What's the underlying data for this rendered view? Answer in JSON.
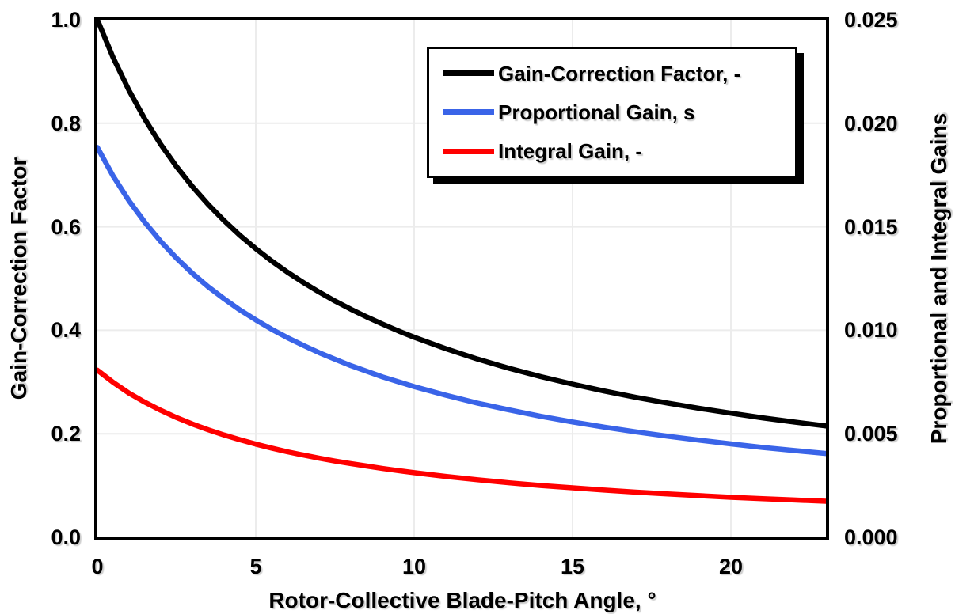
{
  "chart_data": {
    "type": "line",
    "title": "",
    "x_axis": {
      "title": "Rotor-Collective Blade-Pitch Angle, °",
      "xlim": [
        0,
        23
      ],
      "ticks": [
        {
          "v": 0,
          "label": "0"
        },
        {
          "v": 5,
          "label": "5"
        },
        {
          "v": 10,
          "label": "10"
        },
        {
          "v": 15,
          "label": "15"
        },
        {
          "v": 20,
          "label": "20"
        }
      ],
      "gridlines": [
        5,
        10,
        15,
        20
      ]
    },
    "left_axis": {
      "title": "Gain-Correction Factor",
      "ylim": [
        0,
        1.0
      ],
      "ticks": [
        {
          "v": 1.0,
          "label": "1.0"
        },
        {
          "v": 0.8,
          "label": "0.8"
        },
        {
          "v": 0.6,
          "label": "0.6"
        },
        {
          "v": 0.4,
          "label": "0.4"
        },
        {
          "v": 0.2,
          "label": "0.2"
        },
        {
          "v": 0.0,
          "label": "0.0"
        }
      ],
      "gridlines": [
        0.2,
        0.4,
        0.6,
        0.8
      ]
    },
    "right_axis": {
      "title": "Proportional and Integral Gains",
      "ylim": [
        0,
        0.025
      ],
      "ticks": [
        {
          "v": 0.025,
          "label": "0.025"
        },
        {
          "v": 0.02,
          "label": "0.020"
        },
        {
          "v": 0.015,
          "label": "0.015"
        },
        {
          "v": 0.01,
          "label": "0.010"
        },
        {
          "v": 0.005,
          "label": "0.005"
        },
        {
          "v": 0.0,
          "label": "0.000"
        }
      ]
    },
    "grid": true,
    "grid_color": "#ececec",
    "legend_position": "top-right-inside",
    "x": [
      0,
      0.5,
      1,
      1.5,
      2,
      2.5,
      3,
      3.5,
      4,
      4.5,
      5,
      5.5,
      6,
      6.5,
      7,
      7.5,
      8,
      8.5,
      9,
      9.5,
      10,
      11,
      12,
      13,
      14,
      15,
      16,
      17,
      18,
      19,
      20,
      21,
      22,
      23
    ],
    "series": [
      {
        "name": "Gain-Correction Factor, -",
        "axis": "left",
        "color": "#000000",
        "values": [
          1.0,
          0.9265,
          0.8631,
          0.8078,
          0.7591,
          0.716,
          0.6775,
          0.6429,
          0.6117,
          0.5834,
          0.5576,
          0.534,
          0.5123,
          0.4923,
          0.4738,
          0.4566,
          0.4406,
          0.4258,
          0.4119,
          0.3988,
          0.3866,
          0.3643,
          0.3443,
          0.3265,
          0.3104,
          0.2959,
          0.2826,
          0.2704,
          0.2593,
          0.2491,
          0.2397,
          0.2308,
          0.2227,
          0.2151
        ]
      },
      {
        "name": "Proportional Gain, s",
        "axis": "right",
        "color": "#3A64E8",
        "values": [
          0.01883,
          0.01744,
          0.01625,
          0.01521,
          0.01429,
          0.01348,
          0.01275,
          0.0121,
          0.01152,
          0.01098,
          0.0105,
          0.01005,
          0.00964,
          0.00927,
          0.00892,
          0.0086,
          0.00829,
          0.00802,
          0.00775,
          0.00751,
          0.00728,
          0.00686,
          0.00648,
          0.00615,
          0.00584,
          0.00557,
          0.00532,
          0.00509,
          0.00488,
          0.00469,
          0.00451,
          0.00434,
          0.00419,
          0.00405
        ]
      },
      {
        "name": "Integral Gain, -",
        "axis": "right",
        "color": "#FF0000",
        "values": [
          0.00807,
          0.00748,
          0.00696,
          0.00652,
          0.00613,
          0.00578,
          0.00547,
          0.00519,
          0.00494,
          0.00471,
          0.0045,
          0.00431,
          0.00413,
          0.00397,
          0.00382,
          0.00368,
          0.00356,
          0.00344,
          0.00332,
          0.00322,
          0.00312,
          0.00294,
          0.00278,
          0.00263,
          0.0025,
          0.00239,
          0.00228,
          0.00218,
          0.00209,
          0.00201,
          0.00193,
          0.00186,
          0.0018,
          0.00174
        ]
      }
    ],
    "style": {
      "line_width": 6.5,
      "border_width": 4,
      "border_color": "#000000",
      "background": "#ffffff"
    }
  },
  "legend": {
    "items": [
      {
        "label": "Gain-Correction Factor, -",
        "color": "#000000"
      },
      {
        "label": "Proportional Gain, s",
        "color": "#3A64E8"
      },
      {
        "label": "Integral Gain, -",
        "color": "#FF0000"
      }
    ]
  }
}
